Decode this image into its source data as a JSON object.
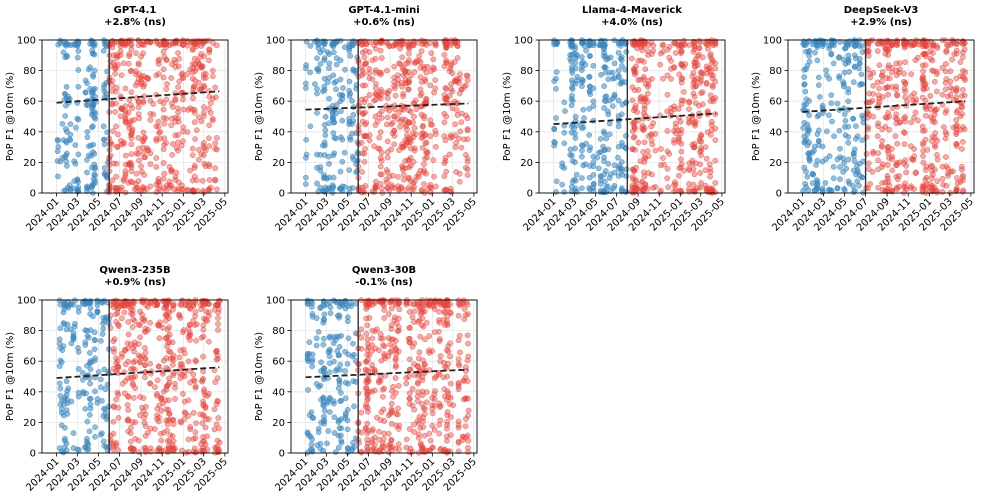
{
  "colors": {
    "pre": "#3a87c0",
    "post": "#e8453c",
    "trend": "#222222",
    "cutoff": "#333333",
    "grid": "#e6e6e6"
  },
  "chart_data": [
    {
      "type": "scatter",
      "title": "GPT-4.1",
      "subtitle": "+2.8% (ns)",
      "ylabel": "PoP F1 @10m (%)",
      "xlim": [
        "2023-11-20",
        "2025-05-10"
      ],
      "ylim": [
        0,
        100
      ],
      "yticks": [
        0,
        20,
        40,
        60,
        80,
        100
      ],
      "xticks": [
        "2024-01",
        "2024-03",
        "2024-05",
        "2024-07",
        "2024-09",
        "2024-11",
        "2025-01",
        "2025-03",
        "2025-05"
      ],
      "data_start": "2024-01-01",
      "cutoff": "2024-06-01",
      "data_end": "2025-04-15",
      "trend": {
        "start": 59,
        "end": 66.5
      },
      "series": [
        {
          "name": "pre-cutoff",
          "n": 190
        },
        {
          "name": "post-cutoff",
          "n": 520
        }
      ]
    },
    {
      "type": "scatter",
      "title": "GPT-4.1-mini",
      "subtitle": "+0.6% (ns)",
      "ylabel": "PoP F1 @10m (%)",
      "xlim": [
        "2023-11-20",
        "2025-05-10"
      ],
      "ylim": [
        0,
        100
      ],
      "yticks": [
        0,
        20,
        40,
        60,
        80,
        100
      ],
      "xticks": [
        "2024-01",
        "2024-03",
        "2024-05",
        "2024-07",
        "2024-09",
        "2024-11",
        "2025-01",
        "2025-03",
        "2025-05"
      ],
      "data_start": "2024-01-01",
      "cutoff": "2024-06-01",
      "data_end": "2025-04-15",
      "trend": {
        "start": 54.5,
        "end": 58.5
      },
      "series": [
        {
          "name": "pre-cutoff",
          "n": 190
        },
        {
          "name": "post-cutoff",
          "n": 520
        }
      ]
    },
    {
      "type": "scatter",
      "title": "Llama-4-Maverick",
      "subtitle": "+4.0% (ns)",
      "ylabel": "PoP F1 @10m (%)",
      "xlim": [
        "2023-11-20",
        "2025-05-10"
      ],
      "ylim": [
        0,
        100
      ],
      "yticks": [
        0,
        20,
        40,
        60,
        80,
        100
      ],
      "xticks": [
        "2024-01",
        "2024-03",
        "2024-05",
        "2024-07",
        "2024-09",
        "2024-11",
        "2025-01",
        "2025-03",
        "2025-05"
      ],
      "data_start": "2024-01-01",
      "cutoff": "2024-08-01",
      "data_end": "2025-04-15",
      "trend": {
        "start": 45,
        "end": 52
      },
      "series": [
        {
          "name": "pre-cutoff",
          "n": 300
        },
        {
          "name": "post-cutoff",
          "n": 420
        }
      ]
    },
    {
      "type": "scatter",
      "title": "DeepSeek-V3",
      "subtitle": "+2.9% (ns)",
      "ylabel": "PoP F1 @10m (%)",
      "xlim": [
        "2023-11-20",
        "2025-05-10"
      ],
      "ylim": [
        0,
        100
      ],
      "yticks": [
        0,
        20,
        40,
        60,
        80,
        100
      ],
      "xticks": [
        "2024-01",
        "2024-03",
        "2024-05",
        "2024-07",
        "2024-09",
        "2024-11",
        "2025-01",
        "2025-03",
        "2025-05"
      ],
      "data_start": "2024-01-01",
      "cutoff": "2024-07-01",
      "data_end": "2025-04-15",
      "trend": {
        "start": 53,
        "end": 60
      },
      "series": [
        {
          "name": "pre-cutoff",
          "n": 250
        },
        {
          "name": "post-cutoff",
          "n": 470
        }
      ]
    },
    {
      "type": "scatter",
      "title": "Qwen3-235B",
      "subtitle": "+0.9% (ns)",
      "ylabel": "PoP F1 @10m (%)",
      "xlim": [
        "2023-11-20",
        "2025-05-10"
      ],
      "ylim": [
        0,
        100
      ],
      "yticks": [
        0,
        20,
        40,
        60,
        80,
        100
      ],
      "xticks": [
        "2024-01",
        "2024-03",
        "2024-05",
        "2024-07",
        "2024-09",
        "2024-11",
        "2025-01",
        "2025-03",
        "2025-05"
      ],
      "data_start": "2024-01-01",
      "cutoff": "2024-06-01",
      "data_end": "2025-04-15",
      "trend": {
        "start": 49,
        "end": 56
      },
      "series": [
        {
          "name": "pre-cutoff",
          "n": 190
        },
        {
          "name": "post-cutoff",
          "n": 520
        }
      ]
    },
    {
      "type": "scatter",
      "title": "Qwen3-30B",
      "subtitle": "-0.1% (ns)",
      "ylabel": "PoP F1 @10m (%)",
      "xlim": [
        "2023-11-20",
        "2025-05-10"
      ],
      "ylim": [
        0,
        100
      ],
      "yticks": [
        0,
        20,
        40,
        60,
        80,
        100
      ],
      "xticks": [
        "2024-01",
        "2024-03",
        "2024-05",
        "2024-07",
        "2024-09",
        "2024-11",
        "2025-01",
        "2025-03",
        "2025-05"
      ],
      "data_start": "2024-01-01",
      "cutoff": "2024-06-01",
      "data_end": "2025-04-15",
      "trend": {
        "start": 49.5,
        "end": 54.5
      },
      "series": [
        {
          "name": "pre-cutoff",
          "n": 190
        },
        {
          "name": "post-cutoff",
          "n": 520
        }
      ]
    }
  ]
}
